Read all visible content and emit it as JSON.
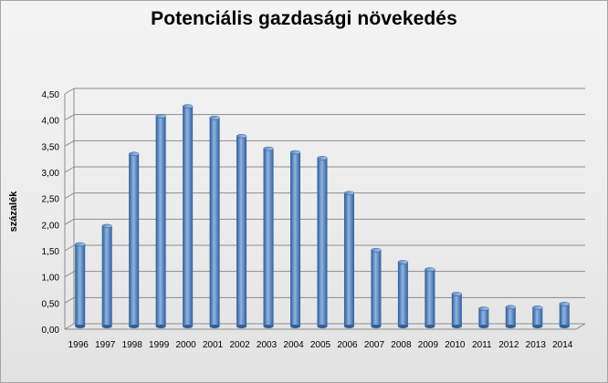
{
  "colors": {
    "bar_dark": "#2b5a95",
    "bar_mid": "#4f81bd",
    "bar_light": "#8fb4e3",
    "grid": "#8c8c8c",
    "background": "#eeeeee"
  },
  "chart_data": {
    "type": "bar",
    "title": "Potenciális gazdasági növekedés",
    "xlabel": "",
    "ylabel": "százalék",
    "ylim": [
      0,
      4.5
    ],
    "yticks": [
      "0,00",
      "0,50",
      "1,00",
      "1,50",
      "2,00",
      "2,50",
      "3,00",
      "3,50",
      "4,00",
      "4,50"
    ],
    "grid": true,
    "legend": "none",
    "categories": [
      "1996",
      "1997",
      "1998",
      "1999",
      "2000",
      "2001",
      "2002",
      "2003",
      "2004",
      "2005",
      "2006",
      "2007",
      "2008",
      "2009",
      "2010",
      "2011",
      "2012",
      "2013",
      "2014"
    ],
    "values": [
      1.57,
      1.92,
      3.3,
      4.02,
      4.21,
      3.99,
      3.64,
      3.4,
      3.33,
      3.22,
      2.55,
      1.46,
      1.23,
      1.09,
      0.62,
      0.34,
      0.37,
      0.36,
      0.43
    ]
  }
}
